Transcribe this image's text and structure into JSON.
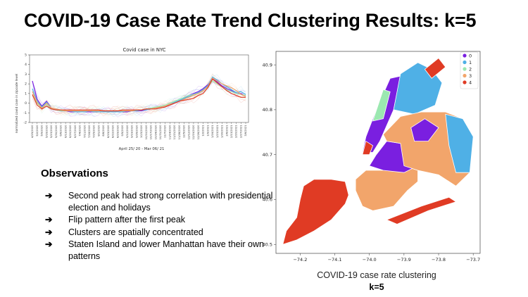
{
  "slide": {
    "title": "COVID-19 Case Rate Trend Clustering Results: k=5"
  },
  "observations": {
    "title": "Observations",
    "arrow": "➔",
    "items": [
      "Second peak had strong correlation with presidential election and holidays",
      "Flip pattern after the first peak",
      "Clusters are spatially concentrated",
      "Staten Island and lower Manhattan have their own patterns"
    ]
  },
  "map_caption": {
    "line1": "COVID-19 case rate clustering",
    "line2": "k=5"
  },
  "colors": {
    "cluster0": "#7a1fe0",
    "cluster1": "#4fb0e6",
    "cluster2": "#9be8b0",
    "cluster3": "#f2a56b",
    "cluster4": "#e03b24"
  },
  "chart_data": [
    {
      "type": "line",
      "title": "Covid case in NYC",
      "xlabel": "April 25/ 20 - Mar 06/ 21",
      "ylabel": "normalized covid case in zipcode level",
      "ylim": [
        -2,
        5
      ],
      "yticks": [
        -2,
        -1,
        0,
        1,
        2,
        3,
        4,
        5
      ],
      "x": [
        "4/25/2020",
        "5/2/2020",
        "5/9/2020",
        "5/16/2020",
        "5/23/2020",
        "5/30/2020",
        "6/6/2020",
        "6/13/2020",
        "6/20/2020",
        "6/27/2020",
        "7/4/2020",
        "7/11/2020",
        "7/18/2020",
        "7/25/2020",
        "8/1/2020",
        "8/8/2020",
        "8/15/2020",
        "8/22/2020",
        "8/29/2020",
        "9/5/2020",
        "9/12/2020",
        "9/19/2020",
        "9/26/2020",
        "10/3/2020",
        "10/10/2020",
        "10/17/2020",
        "10/24/2020",
        "10/31/2020",
        "11/7/2020",
        "11/14/2020",
        "11/21/2020",
        "11/28/2020",
        "12/5/2020",
        "12/12/2020",
        "12/19/2020",
        "12/26/2020",
        "1/2/2021",
        "1/9/2021",
        "1/16/2021",
        "1/23/2021",
        "1/30/2021",
        "2/6/2021",
        "2/13/2021",
        "2/20/2021",
        "2/27/2021",
        "3/6/2021"
      ],
      "series": [
        {
          "color": "#7a1fe0",
          "values": [
            2.3,
            0.4,
            -0.3,
            0.2,
            -0.5,
            -0.7,
            -0.8,
            -0.8,
            -0.9,
            -0.9,
            -0.9,
            -0.9,
            -0.9,
            -0.9,
            -0.9,
            -0.9,
            -0.9,
            -0.9,
            -0.9,
            -0.9,
            -0.9,
            -0.8,
            -0.8,
            -0.8,
            -0.7,
            -0.6,
            -0.5,
            -0.4,
            -0.3,
            -0.2,
            0.0,
            0.2,
            0.5,
            0.8,
            1.0,
            1.2,
            1.5,
            1.9,
            2.5,
            2.2,
            1.8,
            1.5,
            1.3,
            1.0,
            1.0,
            0.7
          ]
        },
        {
          "color": "#4fb0e6",
          "values": [
            1.5,
            0.2,
            -0.4,
            0.1,
            -0.5,
            -0.7,
            -0.8,
            -0.8,
            -0.8,
            -0.9,
            -0.9,
            -0.9,
            -0.8,
            -0.9,
            -0.9,
            -0.9,
            -0.9,
            -0.9,
            -0.9,
            -0.9,
            -0.8,
            -0.8,
            -0.8,
            -0.7,
            -0.7,
            -0.6,
            -0.5,
            -0.4,
            -0.3,
            -0.1,
            0.1,
            0.3,
            0.5,
            0.7,
            0.9,
            1.1,
            1.4,
            1.8,
            2.7,
            2.4,
            2.0,
            1.7,
            1.4,
            1.1,
            1.2,
            0.9
          ]
        },
        {
          "color": "#9be8b0",
          "values": [
            0.8,
            0.0,
            -0.5,
            -0.1,
            -0.6,
            -0.7,
            -0.8,
            -0.8,
            -0.8,
            -0.8,
            -0.8,
            -0.8,
            -0.8,
            -0.8,
            -0.8,
            -0.8,
            -0.8,
            -0.8,
            -0.8,
            -0.8,
            -0.8,
            -0.8,
            -0.7,
            -0.7,
            -0.6,
            -0.5,
            -0.4,
            -0.3,
            -0.2,
            0.0,
            0.2,
            0.4,
            0.6,
            0.8,
            0.9,
            1.0,
            1.3,
            1.7,
            2.3,
            2.0,
            1.7,
            1.4,
            1.2,
            1.0,
            0.9,
            0.8
          ]
        },
        {
          "color": "#f2a56b",
          "values": [
            1.2,
            0.1,
            -0.5,
            0.0,
            -0.5,
            -0.6,
            -0.7,
            -0.8,
            -0.8,
            -0.8,
            -0.8,
            -0.8,
            -0.8,
            -0.8,
            -0.8,
            -0.8,
            -0.8,
            -0.8,
            -0.8,
            -0.8,
            -0.8,
            -0.8,
            -0.7,
            -0.7,
            -0.6,
            -0.6,
            -0.5,
            -0.4,
            -0.3,
            -0.1,
            0.0,
            0.2,
            0.4,
            0.6,
            0.8,
            1.0,
            1.3,
            1.7,
            2.6,
            2.3,
            2.0,
            1.8,
            1.6,
            1.3,
            0.9,
            0.7
          ]
        },
        {
          "color": "#e03b24",
          "values": [
            0.9,
            -0.2,
            -0.6,
            -0.3,
            -0.6,
            -0.7,
            -0.7,
            -0.7,
            -0.7,
            -0.7,
            -0.7,
            -0.7,
            -0.7,
            -0.7,
            -0.7,
            -0.8,
            -0.8,
            -0.8,
            -0.8,
            -0.7,
            -0.7,
            -0.7,
            -0.7,
            -0.7,
            -0.6,
            -0.6,
            -0.6,
            -0.5,
            -0.4,
            -0.2,
            0.0,
            0.2,
            0.3,
            0.4,
            0.5,
            0.8,
            1.0,
            1.6,
            2.5,
            2.1,
            1.7,
            1.3,
            1.0,
            0.8,
            0.6,
            0.6
          ]
        }
      ]
    },
    {
      "type": "scatter",
      "title": "",
      "xlim": [
        -74.27,
        -73.68
      ],
      "ylim": [
        40.48,
        40.93
      ],
      "xticks": [
        -74.2,
        -74.1,
        -74.0,
        -73.9,
        -73.8,
        -73.7
      ],
      "xtick_labels": [
        "−74.2",
        "−74.1",
        "−74.0",
        "−73.9",
        "−73.8",
        "−73.7"
      ],
      "yticks": [
        40.5,
        40.6,
        40.7,
        40.8,
        40.9
      ],
      "ytick_labels": [
        "40.5",
        "40.6",
        "40.7",
        "40.8",
        "40.9"
      ],
      "legend": {
        "position": "top-right",
        "labels": [
          "0",
          "1",
          "2",
          "3",
          "4"
        ]
      },
      "regions": [
        {
          "cluster": 4,
          "name": "Staten Island",
          "polygon": [
            [
              -74.25,
              40.5
            ],
            [
              -74.24,
              40.53
            ],
            [
              -74.21,
              40.56
            ],
            [
              -74.2,
              40.6
            ],
            [
              -74.19,
              40.63
            ],
            [
              -74.16,
              40.645
            ],
            [
              -74.11,
              40.645
            ],
            [
              -74.07,
              40.64
            ],
            [
              -74.06,
              40.61
            ],
            [
              -74.07,
              40.59
            ],
            [
              -74.11,
              40.555
            ],
            [
              -74.16,
              40.53
            ],
            [
              -74.21,
              40.51
            ]
          ]
        },
        {
          "cluster": 3,
          "name": "Brooklyn South",
          "polygon": [
            [
              -74.04,
              40.62
            ],
            [
              -74.04,
              40.645
            ],
            [
              -74.01,
              40.665
            ],
            [
              -73.96,
              40.665
            ],
            [
              -73.9,
              40.675
            ],
            [
              -73.86,
              40.665
            ],
            [
              -73.86,
              40.64
            ],
            [
              -73.89,
              40.62
            ],
            [
              -73.93,
              40.585
            ],
            [
              -73.99,
              40.575
            ],
            [
              -74.02,
              40.585
            ]
          ]
        },
        {
          "cluster": 0,
          "name": "Brooklyn Central",
          "polygon": [
            [
              -74.0,
              40.675
            ],
            [
              -73.98,
              40.7
            ],
            [
              -73.95,
              40.73
            ],
            [
              -73.91,
              40.725
            ],
            [
              -73.88,
              40.7
            ],
            [
              -73.86,
              40.675
            ],
            [
              -73.9,
              40.66
            ],
            [
              -73.96,
              40.665
            ]
          ]
        },
        {
          "cluster": 4,
          "name": "Rockaways",
          "polygon": [
            [
              -73.95,
              40.555
            ],
            [
              -73.85,
              40.585
            ],
            [
              -73.77,
              40.605
            ],
            [
              -73.75,
              40.595
            ],
            [
              -73.83,
              40.575
            ],
            [
              -73.92,
              40.545
            ]
          ]
        },
        {
          "cluster": 0,
          "name": "Manhattan",
          "polygon": [
            [
              -74.02,
              40.705
            ],
            [
              -74.01,
              40.74
            ],
            [
              -73.98,
              40.8
            ],
            [
              -73.94,
              40.87
            ],
            [
              -73.91,
              40.875
            ],
            [
              -73.93,
              40.8
            ],
            [
              -73.97,
              40.73
            ],
            [
              -73.99,
              40.705
            ]
          ]
        },
        {
          "cluster": 4,
          "name": "Lower Manhattan",
          "polygon": [
            [
              -74.02,
              40.7
            ],
            [
              -74.0,
              40.7
            ],
            [
              -73.99,
              40.72
            ],
            [
              -74.01,
              40.73
            ]
          ]
        },
        {
          "cluster": 1,
          "name": "Bronx",
          "polygon": [
            [
              -73.93,
              40.8
            ],
            [
              -73.91,
              40.88
            ],
            [
              -73.86,
              40.905
            ],
            [
              -73.82,
              40.89
            ],
            [
              -73.79,
              40.86
            ],
            [
              -73.81,
              40.81
            ],
            [
              -73.87,
              40.79
            ]
          ]
        },
        {
          "cluster": 4,
          "name": "Bronx North",
          "polygon": [
            [
              -73.84,
              40.89
            ],
            [
              -73.8,
              40.915
            ],
            [
              -73.78,
              40.895
            ],
            [
              -73.82,
              40.87
            ]
          ]
        },
        {
          "cluster": 2,
          "name": "Upper Manhattan West",
          "polygon": [
            [
              -73.99,
              40.775
            ],
            [
              -73.96,
              40.78
            ],
            [
              -73.94,
              40.84
            ],
            [
              -73.96,
              40.845
            ]
          ]
        },
        {
          "cluster": 3,
          "name": "Queens",
          "polygon": [
            [
              -73.96,
              40.745
            ],
            [
              -73.91,
              40.785
            ],
            [
              -73.85,
              40.795
            ],
            [
              -73.78,
              40.795
            ],
            [
              -73.73,
              40.78
            ],
            [
              -73.7,
              40.74
            ],
            [
              -73.71,
              40.66
            ],
            [
              -73.75,
              40.63
            ],
            [
              -73.8,
              40.655
            ],
            [
              -73.86,
              40.665
            ],
            [
              -73.9,
              40.675
            ],
            [
              -73.91,
              40.725
            ],
            [
              -73.95,
              40.73
            ]
          ]
        },
        {
          "cluster": 1,
          "name": "Queens East",
          "polygon": [
            [
              -73.78,
              40.79
            ],
            [
              -73.73,
              40.78
            ],
            [
              -73.7,
              40.74
            ],
            [
              -73.71,
              40.66
            ],
            [
              -73.75,
              40.66
            ],
            [
              -73.77,
              40.72
            ]
          ]
        },
        {
          "cluster": 0,
          "name": "Queens Central",
          "polygon": [
            [
              -73.88,
              40.76
            ],
            [
              -73.84,
              40.78
            ],
            [
              -73.8,
              40.76
            ],
            [
              -73.83,
              40.73
            ],
            [
              -73.87,
              40.73
            ]
          ]
        }
      ]
    }
  ]
}
